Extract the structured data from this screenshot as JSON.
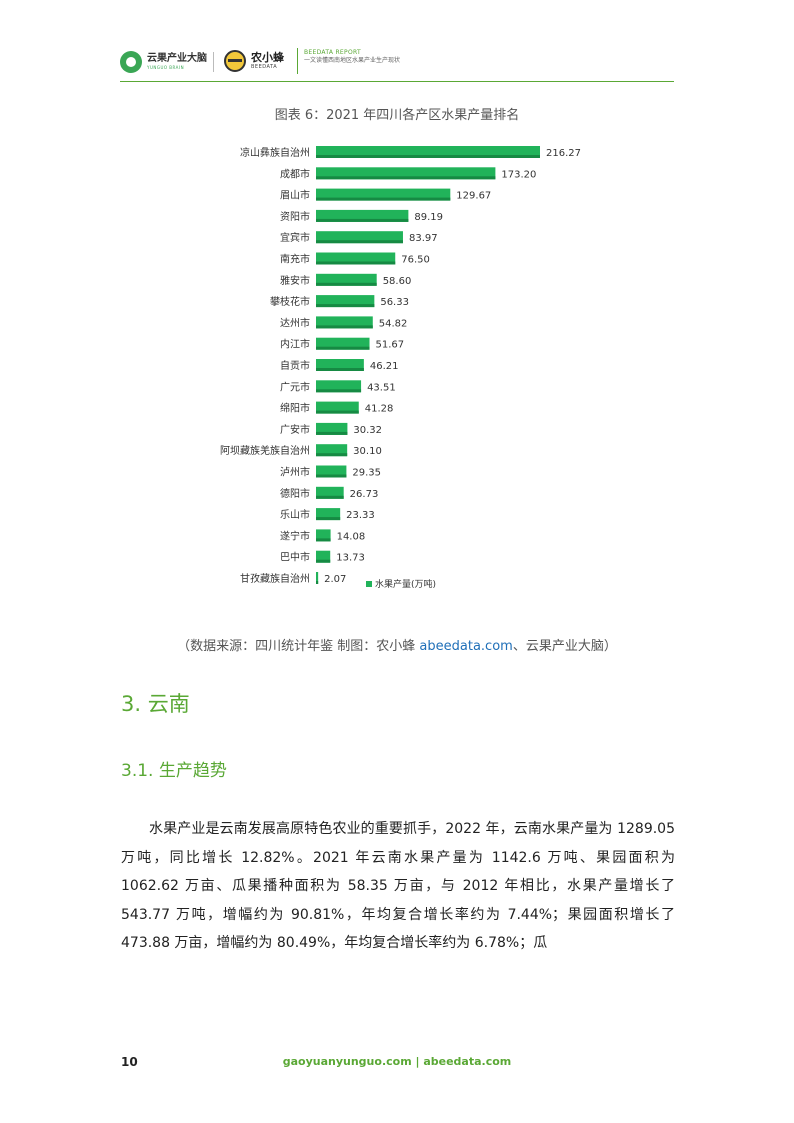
{
  "header": {
    "logo1_cn": "云果产业大脑",
    "logo1_en": "YUNGUO BRAIN",
    "logo2_cn": "农小蜂",
    "logo2_en": "BEEDATA",
    "report_line1": "BEEDATA REPORT",
    "report_line2": "一文读懂西南地区水果产业生产现状"
  },
  "chart_title": "图表 6：2021 年四川各产区水果产量排名",
  "chart_data": {
    "type": "bar",
    "orientation": "horizontal",
    "categories": [
      "凉山彝族自治州",
      "成都市",
      "眉山市",
      "资阳市",
      "宜宾市",
      "南充市",
      "雅安市",
      "攀枝花市",
      "达州市",
      "内江市",
      "自贡市",
      "广元市",
      "绵阳市",
      "广安市",
      "阿坝藏族羌族自治州",
      "泸州市",
      "德阳市",
      "乐山市",
      "遂宁市",
      "巴中市",
      "甘孜藏族自治州"
    ],
    "series": [
      {
        "name": "水果产量(万吨)",
        "values": [
          216.27,
          173.2,
          129.67,
          89.19,
          83.97,
          76.5,
          58.6,
          56.33,
          54.82,
          51.67,
          46.21,
          43.51,
          41.28,
          30.32,
          30.1,
          29.35,
          26.73,
          23.33,
          14.08,
          13.73,
          2.07
        ]
      }
    ],
    "value_labels": [
      "216.27",
      "173.20",
      "129.67",
      "89.19",
      "83.97",
      "76.50",
      "58.60",
      "56.33",
      "54.82",
      "51.67",
      "46.21",
      "43.51",
      "41.28",
      "30.32",
      "30.10",
      "29.35",
      "26.73",
      "23.33",
      "14.08",
      "13.73",
      "2.07"
    ],
    "legend_label": "水果产量(万吨)",
    "legend_position": "bottom-right",
    "bar_color": "#21b35a",
    "grid": false,
    "xlim": [
      0,
      216.27
    ]
  },
  "source": {
    "prefix": "（数据来源：四川统计年鉴    制图：农小蜂 ",
    "link": "abeedata.com",
    "suffix": "、云果产业大脑）"
  },
  "section_heading": "3. 云南",
  "subsection_heading": "3.1. 生产趋势",
  "paragraph": "水果产业是云南发展高原特色农业的重要抓手，2022 年，云南水果产量为 1289.05 万吨，同比增长 12.82%。2021 年云南水果产量为 1142.6 万吨、果园面积为 1062.62 万亩、瓜果播种面积为 58.35 万亩，与 2012 年相比，水果产量增长了 543.77 万吨，增幅约为 90.81%，年均复合增长率约为 7.44%；果园面积增长了 473.88 万亩，增幅约为 80.49%，年均复合增长率约为 6.78%；瓜",
  "footer": {
    "page_number": "10",
    "sites": "gaoyuanyunguo.com  |  abeedata.com"
  },
  "colors": {
    "accent_green": "#5aa835",
    "bar_green": "#21b35a",
    "link_blue": "#1f6fb8"
  }
}
